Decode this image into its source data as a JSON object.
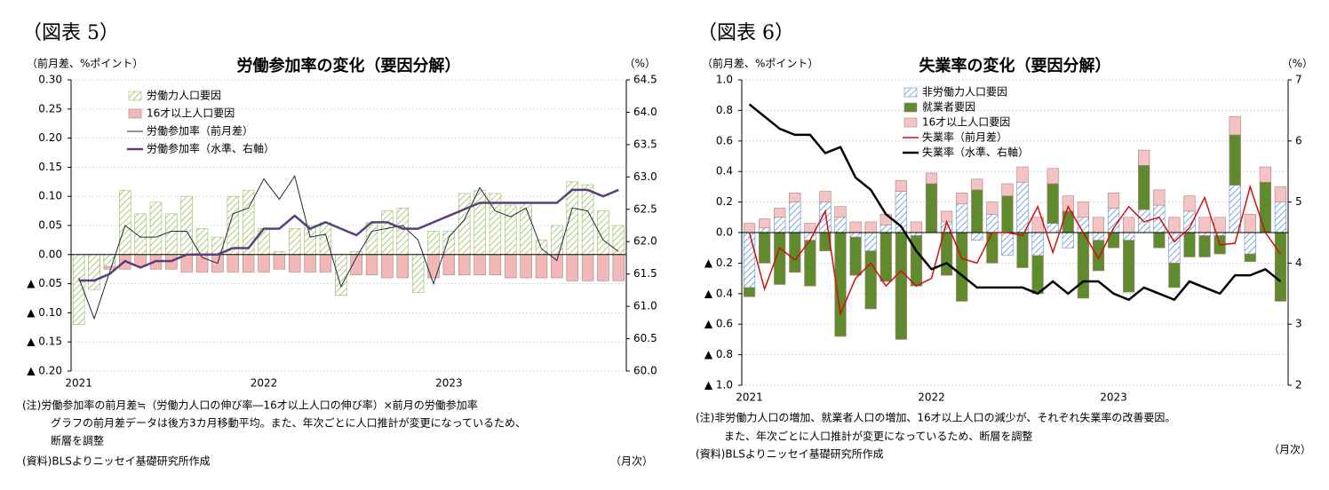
{
  "chart_data": [
    {
      "type": "bar",
      "figure_label": "（図表 5）",
      "title": "労働参加率の変化（要因分解）",
      "y_label": "（前月差、%ポイント）",
      "y2_label": "（%）",
      "x_unit": "（月次）",
      "notes": [
        "(注)労働参加率の前月差≒（労働力人口の伸び率―16才以上人口の伸び率）×前月の労働参加率",
        "グラフの前月差データは後方3カ月移動平均。また、年次ごとに人口推計が変更になっているため、",
        "断層を調整"
      ],
      "source": "(資料)BLSよりニッセイ基礎研究所作成",
      "stacked": false,
      "grid": true,
      "legend": "upper left",
      "categories": [
        "2021",
        null,
        null,
        null,
        null,
        null,
        null,
        null,
        null,
        null,
        null,
        null,
        "2022",
        null,
        null,
        null,
        null,
        null,
        null,
        null,
        null,
        null,
        null,
        null,
        "2023",
        null,
        null,
        null,
        null,
        null,
        null,
        null,
        null,
        null,
        null,
        null
      ],
      "ylim": [
        -0.2,
        0.3
      ],
      "yticks": [
        {
          "value": 0.3,
          "label": "0.30"
        },
        0.25,
        {
          "value": 0.2,
          "label": "0.20"
        },
        0.15,
        {
          "value": 0.1,
          "label": "0.10"
        },
        0.05,
        {
          "value": 0,
          "label": "0.00"
        },
        {
          "value": -0.05,
          "label": "▲ 0.05"
        },
        {
          "value": -0.1,
          "label": "▲ 0.10"
        },
        {
          "value": -0.15,
          "label": "▲ 0.15"
        },
        {
          "value": -0.2,
          "label": "▲ 0.20"
        }
      ],
      "y2lim": [
        60,
        64.5
      ],
      "y2ticks": [
        {
          "value": 60,
          "label": "60.0"
        },
        60.5,
        {
          "value": 61,
          "label": "61.0"
        },
        61.5,
        {
          "value": 62,
          "label": "62.0"
        },
        62.5,
        {
          "value": 63,
          "label": "63.0"
        },
        63.5,
        {
          "value": 64,
          "label": "64.0"
        },
        64.5
      ],
      "series": [
        {
          "name": "労働力人口要因",
          "kind": "bar",
          "color": "#9bbb59",
          "pattern": "hatch",
          "values": [
            -0.12,
            -0.06,
            -0.02,
            0.11,
            0.07,
            0.09,
            0.07,
            0.1,
            0.045,
            0.03,
            0.1,
            0.11,
            0.045,
            0.005,
            0.045,
            0.05,
            0.055,
            -0.07,
            0.005,
            0.055,
            0.075,
            0.08,
            -0.065,
            0.04,
            0.04,
            0.105,
            0.11,
            0.105,
            0.085,
            0.09,
            0.025,
            0.05,
            0.125,
            0.12,
            0.075,
            0.05
          ]
        },
        {
          "name": "16才以上人口要因",
          "kind": "bar",
          "color": "#f2b8b8",
          "values": [
            -0.03,
            -0.03,
            -0.025,
            -0.025,
            -0.02,
            -0.025,
            -0.025,
            -0.03,
            -0.03,
            -0.03,
            -0.03,
            -0.03,
            -0.03,
            -0.025,
            -0.03,
            -0.03,
            -0.03,
            -0.035,
            -0.035,
            -0.035,
            -0.04,
            -0.04,
            -0.04,
            -0.04,
            -0.035,
            -0.035,
            -0.035,
            -0.035,
            -0.04,
            -0.04,
            -0.04,
            -0.04,
            -0.045,
            -0.045,
            -0.045,
            -0.045
          ]
        },
        {
          "name": "労働参加率（前月差）",
          "kind": "line",
          "color": "#1f2a44",
          "line_width": 1,
          "values": [
            -0.04,
            -0.11,
            -0.03,
            0.05,
            0.03,
            0.03,
            0.04,
            0.04,
            -0.005,
            -0.015,
            0.07,
            0.08,
            0.13,
            0.095,
            0.135,
            0.03,
            0.035,
            -0.055,
            -0.005,
            0.04,
            0.045,
            0.05,
            0.025,
            -0.05,
            0.03,
            0.06,
            0.115,
            0.075,
            0.065,
            0.08,
            0.01,
            -0.01,
            0.08,
            0.075,
            0.025,
            0.005
          ]
        },
        {
          "name": "労働参加率（水準、右軸）",
          "kind": "line",
          "axis": "y2",
          "color": "#5b3f7c",
          "line_width": 2.5,
          "values": [
            61.4,
            61.4,
            61.5,
            61.7,
            61.6,
            61.7,
            61.7,
            61.8,
            61.8,
            61.8,
            61.9,
            61.9,
            62.2,
            62.2,
            62.4,
            62.2,
            62.3,
            62.2,
            62.1,
            62.3,
            62.3,
            62.2,
            62.2,
            62.3,
            62.4,
            62.5,
            62.6,
            62.6,
            62.6,
            62.6,
            62.6,
            62.6,
            62.8,
            62.8,
            62.7,
            62.8
          ]
        }
      ]
    },
    {
      "type": "bar",
      "figure_label": "（図表 6）",
      "title": "失業率の変化（要因分解）",
      "y_label": "（前月差、%ポイント）",
      "y2_label": "（%）",
      "x_unit": "（月次）",
      "notes": [
        "(注)非労働力人口の増加、就業者人口の増加、16才以上人口の減少が、それぞれ失業率の改善要因。",
        "また、年次ごとに人口推計が変更になっているため、断層を調整"
      ],
      "source": "(資料)BLSよりニッセイ基礎研究所作成",
      "stacked": true,
      "grid": true,
      "legend": "upper left",
      "categories": [
        "2021",
        null,
        null,
        null,
        null,
        null,
        null,
        null,
        null,
        null,
        null,
        null,
        "2022",
        null,
        null,
        null,
        null,
        null,
        null,
        null,
        null,
        null,
        null,
        null,
        "2023",
        null,
        null,
        null,
        null,
        null,
        null,
        null,
        null,
        null,
        null,
        null
      ],
      "ylim": [
        -1,
        1
      ],
      "yticks": [
        {
          "value": 1,
          "label": "1.0"
        },
        0.8,
        0.6,
        0.4,
        0.2,
        {
          "value": 0,
          "label": "0.0"
        },
        {
          "value": -0.2,
          "label": "▲ 0.2"
        },
        {
          "value": -0.4,
          "label": "▲ 0.4"
        },
        {
          "value": -0.6,
          "label": "▲ 0.6"
        },
        {
          "value": -0.8,
          "label": "▲ 0.8"
        },
        {
          "value": -1,
          "label": "▲ 1.0"
        }
      ],
      "y2lim": [
        2,
        7
      ],
      "y2ticks": [
        2,
        3,
        4,
        5,
        6,
        7
      ],
      "series": [
        {
          "name": "非労働力人口要因",
          "kind": "bar",
          "color": "#5b8fd0",
          "pattern": "hatch",
          "values": [
            -0.36,
            0.03,
            0.1,
            0.2,
            -0.05,
            0.2,
            0.1,
            -0.03,
            -0.12,
            0.05,
            0.27,
            -0.02,
            0.0,
            0.07,
            0.19,
            -0.05,
            0.12,
            -0.15,
            0.33,
            -0.15,
            0.06,
            -0.1,
            0.1,
            -0.05,
            0.16,
            -0.05,
            0.15,
            0.18,
            -0.2,
            0.14,
            -0.02,
            -0.02,
            0.31,
            -0.14,
            0.0,
            0.2
          ]
        },
        {
          "name": "就業者要因",
          "kind": "bar",
          "color": "#5f8a2e",
          "values": [
            -0.06,
            -0.2,
            -0.34,
            -0.26,
            -0.3,
            -0.12,
            -0.68,
            -0.25,
            -0.38,
            -0.32,
            -0.7,
            -0.33,
            0.32,
            -0.28,
            -0.45,
            0.28,
            -0.2,
            0.24,
            -0.23,
            -0.25,
            0.26,
            0.14,
            -0.43,
            -0.2,
            -0.1,
            -0.34,
            0.29,
            -0.1,
            -0.16,
            -0.16,
            -0.14,
            -0.12,
            0.33,
            -0.05,
            0.33,
            -0.45
          ]
        },
        {
          "name": "16才以上人口要因",
          "kind": "bar",
          "color": "#f4c4c4",
          "values": [
            0.06,
            0.06,
            0.06,
            0.06,
            0.06,
            0.07,
            0.07,
            0.07,
            0.07,
            0.07,
            0.07,
            0.07,
            0.07,
            0.07,
            0.07,
            0.07,
            0.08,
            0.08,
            0.1,
            0.1,
            0.1,
            0.1,
            0.1,
            0.1,
            0.1,
            0.1,
            0.1,
            0.1,
            0.1,
            0.1,
            0.1,
            0.1,
            0.12,
            0.12,
            0.1,
            0.1
          ]
        },
        {
          "name": "失業率（前月差）",
          "kind": "line",
          "color": "#d01010",
          "line_width": 1.5,
          "values": [
            0.0,
            -0.37,
            -0.1,
            -0.18,
            -0.05,
            0.14,
            -0.53,
            -0.3,
            -0.2,
            -0.35,
            -0.25,
            -0.35,
            -0.3,
            0.07,
            -0.17,
            -0.2,
            0.0,
            0.0,
            -0.02,
            0.17,
            -0.13,
            0.17,
            0.0,
            -0.17,
            0.03,
            0.17,
            0.07,
            0.1,
            -0.06,
            0.03,
            0.23,
            -0.08,
            -0.07,
            0.3,
            0.0,
            -0.14
          ]
        },
        {
          "name": "失業率（水準、右軸）",
          "kind": "line",
          "axis": "y2",
          "color": "#000000",
          "line_width": 2.5,
          "values": [
            6.6,
            6.4,
            6.2,
            6.1,
            6.1,
            5.8,
            5.9,
            5.4,
            5.2,
            4.8,
            4.6,
            4.2,
            3.9,
            4.0,
            3.8,
            3.6,
            3.6,
            3.6,
            3.6,
            3.5,
            3.7,
            3.5,
            3.7,
            3.7,
            3.5,
            3.4,
            3.6,
            3.5,
            3.4,
            3.7,
            3.6,
            3.5,
            3.8,
            3.8,
            3.9,
            3.7
          ]
        }
      ]
    }
  ]
}
